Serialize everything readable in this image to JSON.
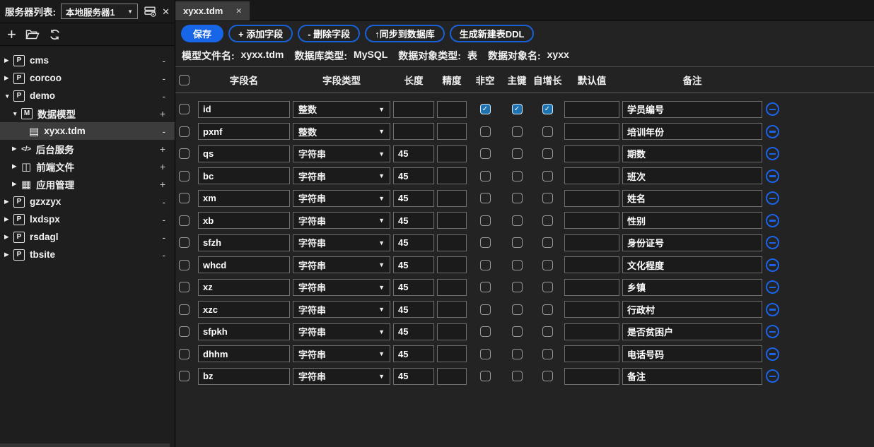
{
  "colors": {
    "accent_blue": "#1866e8",
    "checkbox_checked_blue": "#1d72b2",
    "minus_circle_blue": "#1b63e8"
  },
  "sidebar": {
    "server_list_label": "服务器列表:",
    "server_dropdown_value": "本地服务器1",
    "tree": [
      {
        "label": "cms",
        "icon": "P",
        "arrow": "right",
        "indent": 0,
        "badge": "-"
      },
      {
        "label": "corcoo",
        "icon": "P",
        "arrow": "right",
        "indent": 0,
        "badge": "-"
      },
      {
        "label": "demo",
        "icon": "P",
        "arrow": "down",
        "indent": 0,
        "badge": "-"
      },
      {
        "label": "数据模型",
        "icon": "M",
        "arrow": "down",
        "indent": 1,
        "badge": "+"
      },
      {
        "label": "xyxx.tdm",
        "icon": "doc",
        "arrow": "none",
        "indent": 2,
        "badge": "-",
        "selected": true
      },
      {
        "label": "后台服务",
        "icon": "code",
        "arrow": "right",
        "indent": 1,
        "badge": "+"
      },
      {
        "label": "前端文件",
        "icon": "layout",
        "arrow": "right",
        "indent": 1,
        "badge": "+"
      },
      {
        "label": "应用管理",
        "icon": "grid",
        "arrow": "right",
        "indent": 1,
        "badge": "+"
      },
      {
        "label": "gzxzyx",
        "icon": "P",
        "arrow": "right",
        "indent": 0,
        "badge": "-"
      },
      {
        "label": "lxdspx",
        "icon": "P",
        "arrow": "right",
        "indent": 0,
        "badge": "-"
      },
      {
        "label": "rsdagl",
        "icon": "P",
        "arrow": "right",
        "indent": 0,
        "badge": "-"
      },
      {
        "label": "tbsite",
        "icon": "P",
        "arrow": "right",
        "indent": 0,
        "badge": "-"
      }
    ]
  },
  "tabbar": {
    "active_tab": "xyxx.tdm",
    "close_glyph": "✕"
  },
  "toolbar": {
    "save": "保存",
    "add_field": "+ 添加字段",
    "delete_field": "- 删除字段",
    "sync_db": "↑同步到数据库",
    "gen_ddl": "生成新建表DDL"
  },
  "info_bar": [
    {
      "label": "模型文件名:",
      "value": "xyxx.tdm"
    },
    {
      "label": "数据库类型:",
      "value": "MySQL"
    },
    {
      "label": "数据对象类型:",
      "value": "表"
    },
    {
      "label": "数据对象名:",
      "value": "xyxx"
    }
  ],
  "table": {
    "headers": [
      "字段名",
      "字段类型",
      "长度",
      "精度",
      "非空",
      "主键",
      "自增长",
      "默认值",
      "备注"
    ],
    "rows": [
      {
        "name": "id",
        "type": "整数",
        "length": "",
        "precision": "",
        "not_null": true,
        "primary_key": true,
        "auto_increment": true,
        "default_value": "",
        "remark": "学员编号"
      },
      {
        "name": "pxnf",
        "type": "整数",
        "length": "",
        "precision": "",
        "not_null": false,
        "primary_key": false,
        "auto_increment": false,
        "default_value": "",
        "remark": "培训年份"
      },
      {
        "name": "qs",
        "type": "字符串",
        "length": "45",
        "precision": "",
        "not_null": false,
        "primary_key": false,
        "auto_increment": false,
        "default_value": "",
        "remark": "期数"
      },
      {
        "name": "bc",
        "type": "字符串",
        "length": "45",
        "precision": "",
        "not_null": false,
        "primary_key": false,
        "auto_increment": false,
        "default_value": "",
        "remark": "班次"
      },
      {
        "name": "xm",
        "type": "字符串",
        "length": "45",
        "precision": "",
        "not_null": false,
        "primary_key": false,
        "auto_increment": false,
        "default_value": "",
        "remark": "姓名"
      },
      {
        "name": "xb",
        "type": "字符串",
        "length": "45",
        "precision": "",
        "not_null": false,
        "primary_key": false,
        "auto_increment": false,
        "default_value": "",
        "remark": "性别"
      },
      {
        "name": "sfzh",
        "type": "字符串",
        "length": "45",
        "precision": "",
        "not_null": false,
        "primary_key": false,
        "auto_increment": false,
        "default_value": "",
        "remark": "身份证号"
      },
      {
        "name": "whcd",
        "type": "字符串",
        "length": "45",
        "precision": "",
        "not_null": false,
        "primary_key": false,
        "auto_increment": false,
        "default_value": "",
        "remark": "文化程度"
      },
      {
        "name": "xz",
        "type": "字符串",
        "length": "45",
        "precision": "",
        "not_null": false,
        "primary_key": false,
        "auto_increment": false,
        "default_value": "",
        "remark": "乡镇"
      },
      {
        "name": "xzc",
        "type": "字符串",
        "length": "45",
        "precision": "",
        "not_null": false,
        "primary_key": false,
        "auto_increment": false,
        "default_value": "",
        "remark": "行政村"
      },
      {
        "name": "sfpkh",
        "type": "字符串",
        "length": "45",
        "precision": "",
        "not_null": false,
        "primary_key": false,
        "auto_increment": false,
        "default_value": "",
        "remark": "是否贫困户"
      },
      {
        "name": "dhhm",
        "type": "字符串",
        "length": "45",
        "precision": "",
        "not_null": false,
        "primary_key": false,
        "auto_increment": false,
        "default_value": "",
        "remark": "电话号码"
      },
      {
        "name": "bz",
        "type": "字符串",
        "length": "45",
        "precision": "",
        "not_null": false,
        "primary_key": false,
        "auto_increment": false,
        "default_value": "",
        "remark": "备注"
      }
    ]
  }
}
